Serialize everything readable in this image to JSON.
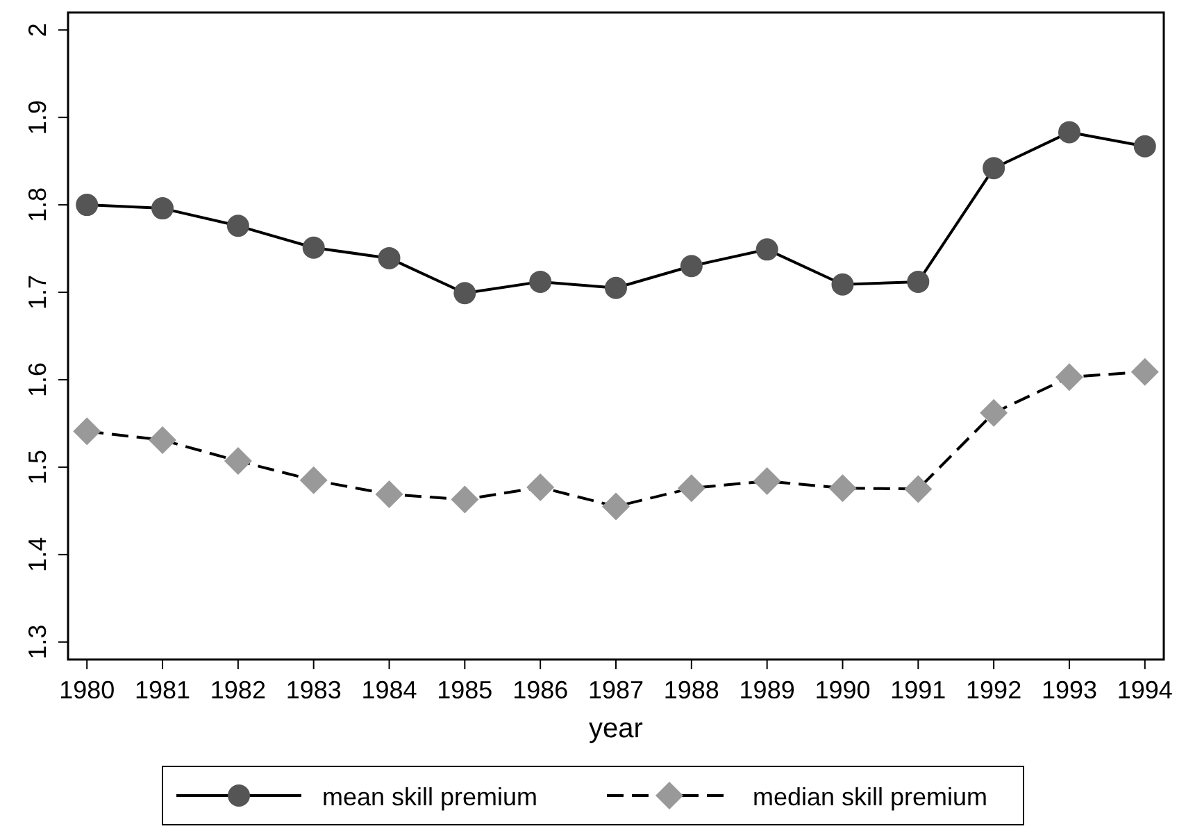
{
  "chart_data": {
    "type": "line",
    "xlabel": "year",
    "x": [
      1980,
      1981,
      1982,
      1983,
      1984,
      1985,
      1986,
      1987,
      1988,
      1989,
      1990,
      1991,
      1992,
      1993,
      1994
    ],
    "xlim": [
      1979.75,
      1994.25
    ],
    "xticks": [
      1980,
      1981,
      1982,
      1983,
      1984,
      1985,
      1986,
      1987,
      1988,
      1989,
      1990,
      1991,
      1992,
      1993,
      1994
    ],
    "ylim": [
      1.28,
      2.02
    ],
    "yticks": [
      1.3,
      1.4,
      1.5,
      1.6,
      1.7,
      1.8,
      1.9,
      2
    ],
    "grid": false,
    "legend": "bottom",
    "series": [
      {
        "name": "mean skill premium",
        "color": "#555555",
        "marker": "circle",
        "line_style": "solid",
        "values": [
          1.8,
          1.796,
          1.776,
          1.751,
          1.739,
          1.699,
          1.712,
          1.705,
          1.73,
          1.749,
          1.709,
          1.712,
          1.842,
          1.883,
          1.867
        ]
      },
      {
        "name": "median skill premium",
        "color": "#999999",
        "marker": "diamond",
        "line_style": "dashed",
        "values": [
          1.541,
          1.531,
          1.507,
          1.485,
          1.469,
          1.463,
          1.477,
          1.455,
          1.476,
          1.484,
          1.476,
          1.475,
          1.562,
          1.603,
          1.609
        ]
      }
    ]
  }
}
